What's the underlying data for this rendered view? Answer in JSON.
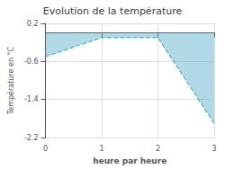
{
  "chart_data": {
    "type": "area",
    "title": "Evolution de la température",
    "xlabel": "heure par heure",
    "ylabel": "Température en °C",
    "x": [
      0,
      1,
      2,
      3
    ],
    "values": [
      -0.5,
      -0.1,
      -0.1,
      -1.9
    ],
    "color": "#55aac8",
    "line_style": "dashed",
    "xlim": [
      0,
      3
    ],
    "ylim": [
      -2.2,
      0.2
    ],
    "xticks": [
      0,
      1,
      2,
      3
    ],
    "yticks": [
      0.2,
      -0.6,
      -1.4,
      -2.2
    ],
    "grid": true
  }
}
